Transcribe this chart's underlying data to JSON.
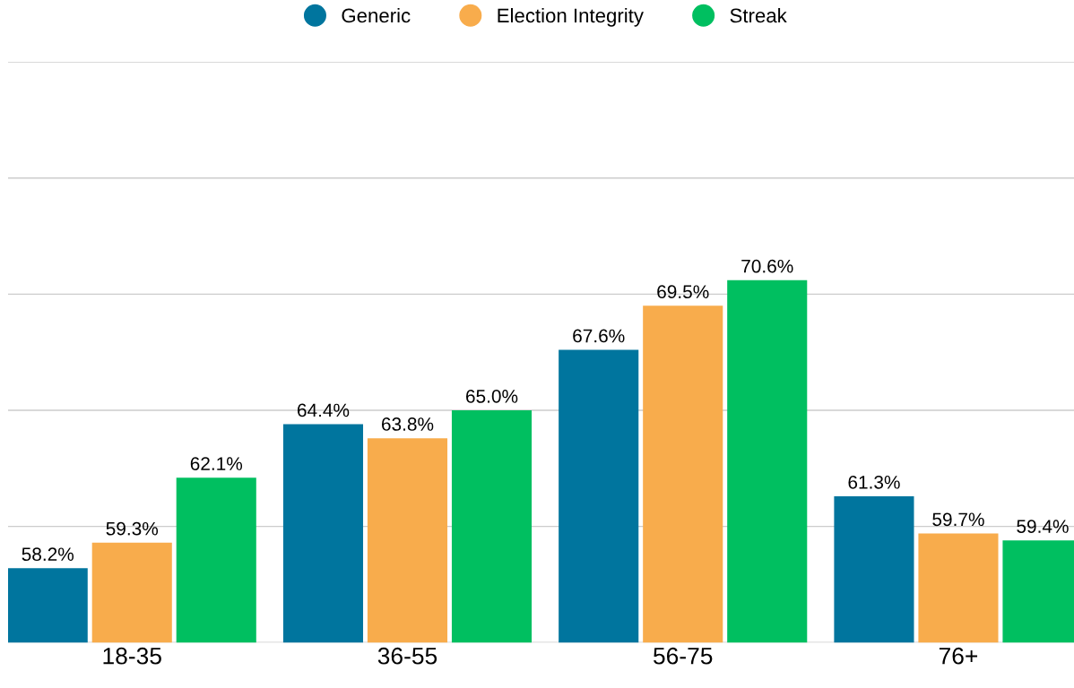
{
  "chart_data": {
    "type": "bar",
    "categories": [
      "18-35",
      "36-55",
      "56-75",
      "76+"
    ],
    "series": [
      {
        "name": "Generic",
        "color": "#00759e",
        "values": [
          58.2,
          64.4,
          67.6,
          61.3
        ],
        "value_labels": [
          "58.2%",
          "64.4%",
          "67.6%",
          "61.3%"
        ]
      },
      {
        "name": "Election Integrity",
        "color": "#f8ac4c",
        "values": [
          59.3,
          63.8,
          69.5,
          59.7
        ],
        "value_labels": [
          "59.3%",
          "63.8%",
          "69.5%",
          "59.7%"
        ]
      },
      {
        "name": "Streak",
        "color": "#00bf60",
        "values": [
          62.1,
          65.0,
          70.6,
          59.4
        ],
        "value_labels": [
          "62.1%",
          "65.0%",
          "70.6%",
          "59.4%"
        ]
      }
    ],
    "tick_labels": "x",
    "grid": "y",
    "legend": "top"
  }
}
